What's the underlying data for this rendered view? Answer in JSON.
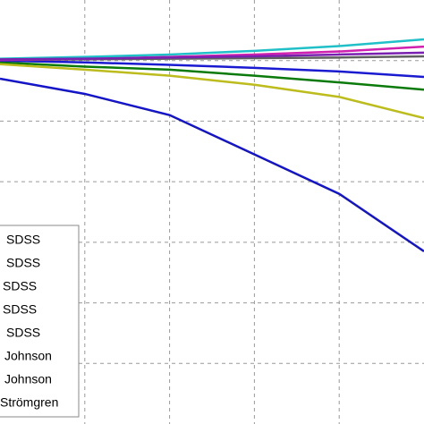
{
  "chart_data": {
    "type": "line",
    "x": [
      0,
      1,
      2,
      3,
      4,
      5
    ],
    "xlim": [
      0,
      5
    ],
    "xticks": [
      1,
      2,
      3,
      4
    ],
    "ylim": [
      -7,
      0
    ],
    "yticks": [
      -6,
      -5,
      -4,
      -3,
      -2,
      -1
    ],
    "grid": true,
    "legend": "lower left",
    "series": [
      {
        "name": "SDSS",
        "color": "#1414c8",
        "values": [
          -1.3,
          -1.55,
          -1.9,
          -2.55,
          -3.2,
          -4.15
        ]
      },
      {
        "name": "SDSS",
        "color": "#0a7a0a",
        "values": [
          -1.03,
          -1.1,
          -1.15,
          -1.25,
          -1.36,
          -1.48
        ]
      },
      {
        "name": "SDSS",
        "color": "#bcbc1c",
        "values": [
          -1.06,
          -1.15,
          -1.25,
          -1.4,
          -1.6,
          -1.95
        ]
      },
      {
        "name": "SDSS",
        "color": "#1a1ad0",
        "values": [
          -1.0,
          -1.03,
          -1.07,
          -1.12,
          -1.18,
          -1.27
        ]
      },
      {
        "name": "SDSS",
        "color": "#606060",
        "values": [
          -0.99,
          -0.98,
          -0.97,
          -0.96,
          -0.95,
          -0.93
        ]
      },
      {
        "name": "Johnson",
        "color": "#d020b0",
        "values": [
          -0.99,
          -0.97,
          -0.94,
          -0.9,
          -0.85,
          -0.77
        ]
      },
      {
        "name": "Johnson",
        "color": "#20c0c8",
        "values": [
          -0.97,
          -0.94,
          -0.9,
          -0.84,
          -0.76,
          -0.65
        ]
      },
      {
        "name": "Strömgren",
        "color": "#7a20b0",
        "values": [
          -0.98,
          -0.97,
          -0.95,
          -0.93,
          -0.9,
          -0.87
        ]
      }
    ]
  }
}
